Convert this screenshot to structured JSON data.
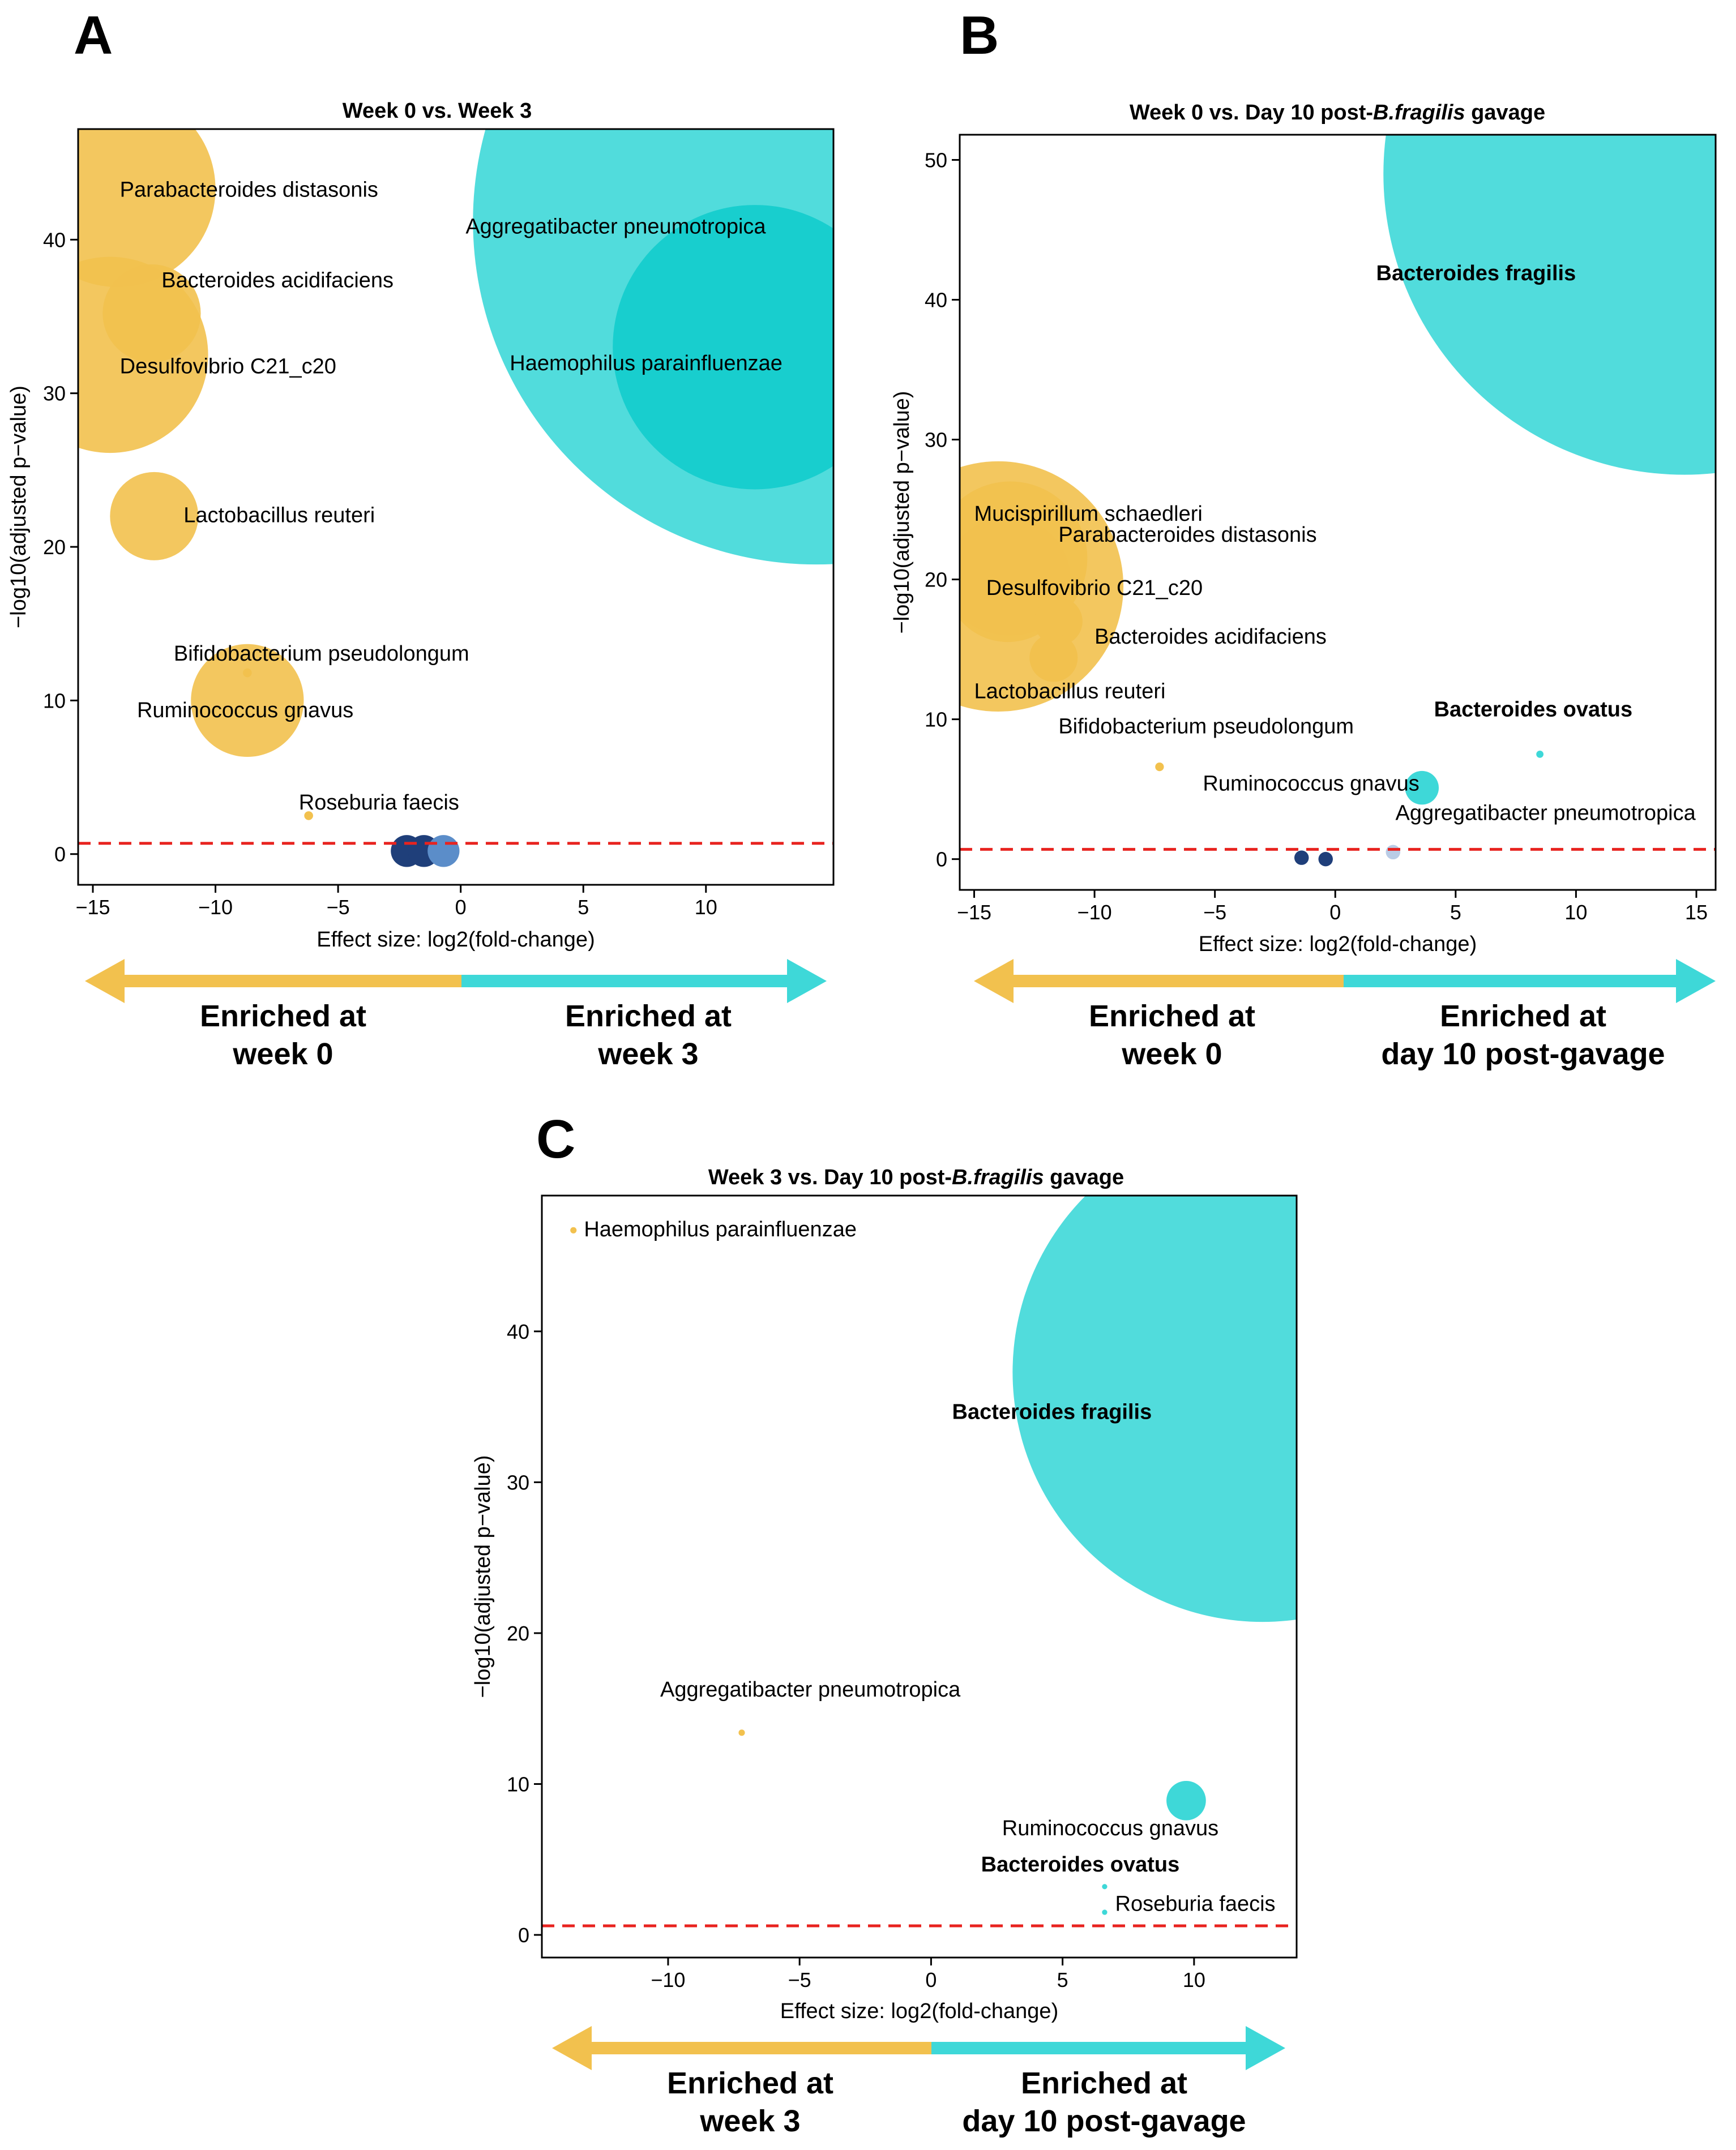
{
  "colors": {
    "gold": "#F2C14E",
    "cyan": "#3ED8D8",
    "cyan_dark": "#12CCCC",
    "navy": "#1F3F7A",
    "steel": "#5B8DC9",
    "light_blue": "#B9CCE6",
    "threshold": "#E8231F"
  },
  "chart_data": [
    {
      "id": "A",
      "type": "scatter",
      "panel_label": "A",
      "title": "Week 0 vs. Week 3",
      "title_italic": "",
      "title_suffix": "",
      "xlabel": "Effect size: log2(fold-change)",
      "ylabel": "−log10(adjusted p−value)",
      "xlim": [
        -15.6,
        15.2
      ],
      "ylim": [
        -2.0,
        47.2
      ],
      "xticks": [
        -15,
        -10,
        -5,
        0,
        5,
        10
      ],
      "yticks": [
        0,
        10,
        20,
        30,
        40
      ],
      "threshold": 0.7,
      "enriched_left": [
        "Enriched at",
        "week 0"
      ],
      "enriched_right": [
        "Enriched at",
        "week 3"
      ],
      "points": [
        {
          "name": "Aggregatibacter pneumotropica",
          "x": 14.5,
          "y": 41.2,
          "r": 14,
          "color": "cyan"
        },
        {
          "name": "Haemophilus parainfluenzae",
          "x": 12.0,
          "y": 33.0,
          "r": 5.8,
          "color": "cyan_dark"
        },
        {
          "name": "Parabacteroides distasonis",
          "x": -14.0,
          "y": 43.3,
          "r": 4.0,
          "color": "gold"
        },
        {
          "name": "Desulfovibrio C21_c20",
          "x": -14.3,
          "y": 32.5,
          "r": 4.0,
          "color": "gold"
        },
        {
          "name": "Bacteroides acidifaciens",
          "x": -12.6,
          "y": 35.2,
          "r": 2.0,
          "color": "gold"
        },
        {
          "name": "Lactobacillus reuteri",
          "x": -12.5,
          "y": 22.0,
          "r": 1.8,
          "color": "gold"
        },
        {
          "name": "Ruminococcus gnavus",
          "x": -8.7,
          "y": 10.0,
          "r": 2.3,
          "color": "gold"
        },
        {
          "name": "Bifidobacterium pseudolongum",
          "x": -8.7,
          "y": 11.8,
          "r": 0.18,
          "color": "gold"
        },
        {
          "name": "Roseburia faecis",
          "x": -6.2,
          "y": 2.5,
          "r": 0.18,
          "color": "gold"
        },
        {
          "name": "",
          "x": -2.2,
          "y": 0.2,
          "r": 0.65,
          "color": "navy"
        },
        {
          "name": "",
          "x": -1.5,
          "y": 0.2,
          "r": 0.65,
          "color": "navy"
        },
        {
          "name": "",
          "x": -0.7,
          "y": 0.2,
          "r": 0.65,
          "color": "steel"
        }
      ],
      "labels": [
        {
          "text": "Parabacteroides distasonis",
          "x": -13.9,
          "y": 42.8,
          "anchor": "start",
          "bold": false
        },
        {
          "text": "Aggregatibacter pneumotropica",
          "x": 0.2,
          "y": 40.4,
          "anchor": "start",
          "bold": false
        },
        {
          "text": "Bacteroides acidifaciens",
          "x": -12.2,
          "y": 36.9,
          "anchor": "start",
          "bold": false
        },
        {
          "text": "Haemophilus parainfluenzae",
          "x": 2.0,
          "y": 31.5,
          "anchor": "start",
          "bold": false
        },
        {
          "text": "Desulfovibrio C21_c20",
          "x": -13.9,
          "y": 31.3,
          "anchor": "start",
          "bold": false
        },
        {
          "text": "Lactobacillus reuteri",
          "x": -11.3,
          "y": 21.6,
          "anchor": "start",
          "bold": false
        },
        {
          "text": "Bifidobacterium pseudolongum",
          "x": -11.7,
          "y": 12.6,
          "anchor": "start",
          "bold": false
        },
        {
          "text": "Ruminococcus gnavus",
          "x": -13.2,
          "y": 8.9,
          "anchor": "start",
          "bold": false
        },
        {
          "text": "Roseburia faecis",
          "x": -6.6,
          "y": 2.9,
          "anchor": "start",
          "bold": false
        }
      ]
    },
    {
      "id": "B",
      "type": "scatter",
      "panel_label": "B",
      "title": "Week 0 vs. Day 10 post-",
      "title_italic": "B.fragilis",
      "title_suffix": " gavage",
      "xlabel": "Effect size: log2(fold-change)",
      "ylabel": "−log10(adjusted p−value)",
      "xlim": [
        -15.6,
        15.8
      ],
      "ylim": [
        -2.2,
        51.8
      ],
      "xticks": [
        -15,
        -10,
        -5,
        0,
        5,
        10,
        15
      ],
      "yticks": [
        0,
        10,
        20,
        30,
        40,
        50
      ],
      "threshold": 0.7,
      "enriched_left": [
        "Enriched at",
        "week 0"
      ],
      "enriched_right": [
        "Enriched at",
        "day 10 post-gavage"
      ],
      "points": [
        {
          "name": "Bacteroides fragilis",
          "x": 14.5,
          "y": 49.0,
          "r": 12.5,
          "color": "cyan"
        },
        {
          "name": "Mucispirillum schaedleri",
          "x": -14.0,
          "y": 19.5,
          "r": 5.2,
          "color": "gold"
        },
        {
          "name": "Parabacteroides distasonis",
          "x": -13.5,
          "y": 21.5,
          "r": 3.2,
          "color": "gold"
        },
        {
          "name": "Desulfovibrio C21_c20",
          "x": -13.6,
          "y": 20.0,
          "r": 2.6,
          "color": "gold"
        },
        {
          "name": "Bacteroides acidifaciens",
          "x": -11.5,
          "y": 17.0,
          "r": 1.0,
          "color": "gold"
        },
        {
          "name": "Lactobacillus reuteri",
          "x": -11.7,
          "y": 14.4,
          "r": 1.0,
          "color": "gold"
        },
        {
          "name": "Bifidobacterium pseudolongum",
          "x": -7.3,
          "y": 6.6,
          "r": 0.18,
          "color": "gold"
        },
        {
          "name": "Ruminococcus gnavus",
          "x": 3.6,
          "y": 5.1,
          "r": 0.7,
          "color": "cyan"
        },
        {
          "name": "Bacteroides ovatus",
          "x": 8.5,
          "y": 7.5,
          "r": 0.15,
          "color": "cyan"
        },
        {
          "name": "Aggregatibacter pneumotropica",
          "x": 8.5,
          "y": 7.5,
          "r": 0.1,
          "color": "cyan"
        },
        {
          "name": "",
          "x": -1.4,
          "y": 0.1,
          "r": 0.3,
          "color": "navy"
        },
        {
          "name": "",
          "x": -0.4,
          "y": 0.0,
          "r": 0.3,
          "color": "navy"
        },
        {
          "name": "",
          "x": 2.4,
          "y": 0.5,
          "r": 0.3,
          "color": "light_blue"
        }
      ],
      "labels": [
        {
          "text": "Mucispirillum schaedleri",
          "x": -15.0,
          "y": 24.2,
          "anchor": "start",
          "bold": false
        },
        {
          "text": "Parabacteroides distasonis",
          "x": -11.5,
          "y": 22.7,
          "anchor": "start",
          "bold": false
        },
        {
          "text": "Desulfovibrio C21_c20",
          "x": -14.5,
          "y": 18.9,
          "anchor": "start",
          "bold": false
        },
        {
          "text": "Bacteroides acidifaciens",
          "x": -10.0,
          "y": 15.4,
          "anchor": "start",
          "bold": false
        },
        {
          "text": "Lactobacillus reuteri",
          "x": -15.0,
          "y": 11.5,
          "anchor": "start",
          "bold": false
        },
        {
          "text": "Bifidobacterium pseudolongum",
          "x": -11.5,
          "y": 9.0,
          "anchor": "start",
          "bold": false
        },
        {
          "text": "Bacteroides fragilis",
          "x": 1.7,
          "y": 41.4,
          "anchor": "start",
          "bold": true
        },
        {
          "text": "Bacteroides ovatus",
          "x": 4.1,
          "y": 10.2,
          "anchor": "start",
          "bold": true
        },
        {
          "text": "Ruminococcus gnavus",
          "x": -5.5,
          "y": 4.9,
          "anchor": "start",
          "bold": false
        },
        {
          "text": "Aggregatibacter pneumotropica",
          "x": 2.5,
          "y": 2.8,
          "anchor": "start",
          "bold": false
        }
      ]
    },
    {
      "id": "C",
      "type": "scatter",
      "panel_label": "C",
      "title": "Week 3 vs. Day 10 post-",
      "title_italic": "B.fragilis",
      "title_suffix": " gavage",
      "xlabel": "Effect size: log2(fold-change)",
      "ylabel": "−log10(adjusted p−value)",
      "xlim": [
        -14.8,
        13.9
      ],
      "ylim": [
        -1.5,
        49.0
      ],
      "xticks": [
        -10,
        -5,
        0,
        5,
        10
      ],
      "yticks": [
        0,
        10,
        20,
        30,
        40
      ],
      "threshold": 0.6,
      "enriched_left": [
        "Enriched at",
        "week 3"
      ],
      "enriched_right": [
        "Enriched at",
        "day 10 post-gavage"
      ],
      "points": [
        {
          "name": "Bacteroides fragilis",
          "x": 12.6,
          "y": 37.3,
          "r": 9.5,
          "color": "cyan"
        },
        {
          "name": "Ruminococcus gnavus",
          "x": 9.7,
          "y": 8.9,
          "r": 0.75,
          "color": "cyan"
        },
        {
          "name": "Haemophilus parainfluenzae",
          "x": -13.6,
          "y": 46.7,
          "r": 0.12,
          "color": "gold"
        },
        {
          "name": "Aggregatibacter pneumotropica",
          "x": -7.2,
          "y": 13.4,
          "r": 0.12,
          "color": "gold"
        },
        {
          "name": "Bacteroides ovatus",
          "x": 6.6,
          "y": 3.2,
          "r": 0.1,
          "color": "cyan"
        },
        {
          "name": "Roseburia faecis",
          "x": 6.6,
          "y": 1.5,
          "r": 0.1,
          "color": "cyan"
        }
      ],
      "labels": [
        {
          "text": "Haemophilus parainfluenzae",
          "x": -13.2,
          "y": 46.3,
          "anchor": "start",
          "bold": false
        },
        {
          "text": "Bacteroides fragilis",
          "x": 0.8,
          "y": 34.2,
          "anchor": "start",
          "bold": true
        },
        {
          "text": "Aggregatibacter pneumotropica",
          "x": -10.3,
          "y": 15.8,
          "anchor": "start",
          "bold": false
        },
        {
          "text": "Ruminococcus gnavus",
          "x": 2.7,
          "y": 6.6,
          "anchor": "start",
          "bold": false
        },
        {
          "text": "Bacteroides ovatus",
          "x": 1.9,
          "y": 4.2,
          "anchor": "start",
          "bold": true
        },
        {
          "text": "Roseburia faecis",
          "x": 7.0,
          "y": 1.6,
          "anchor": "start",
          "bold": false
        }
      ]
    }
  ]
}
